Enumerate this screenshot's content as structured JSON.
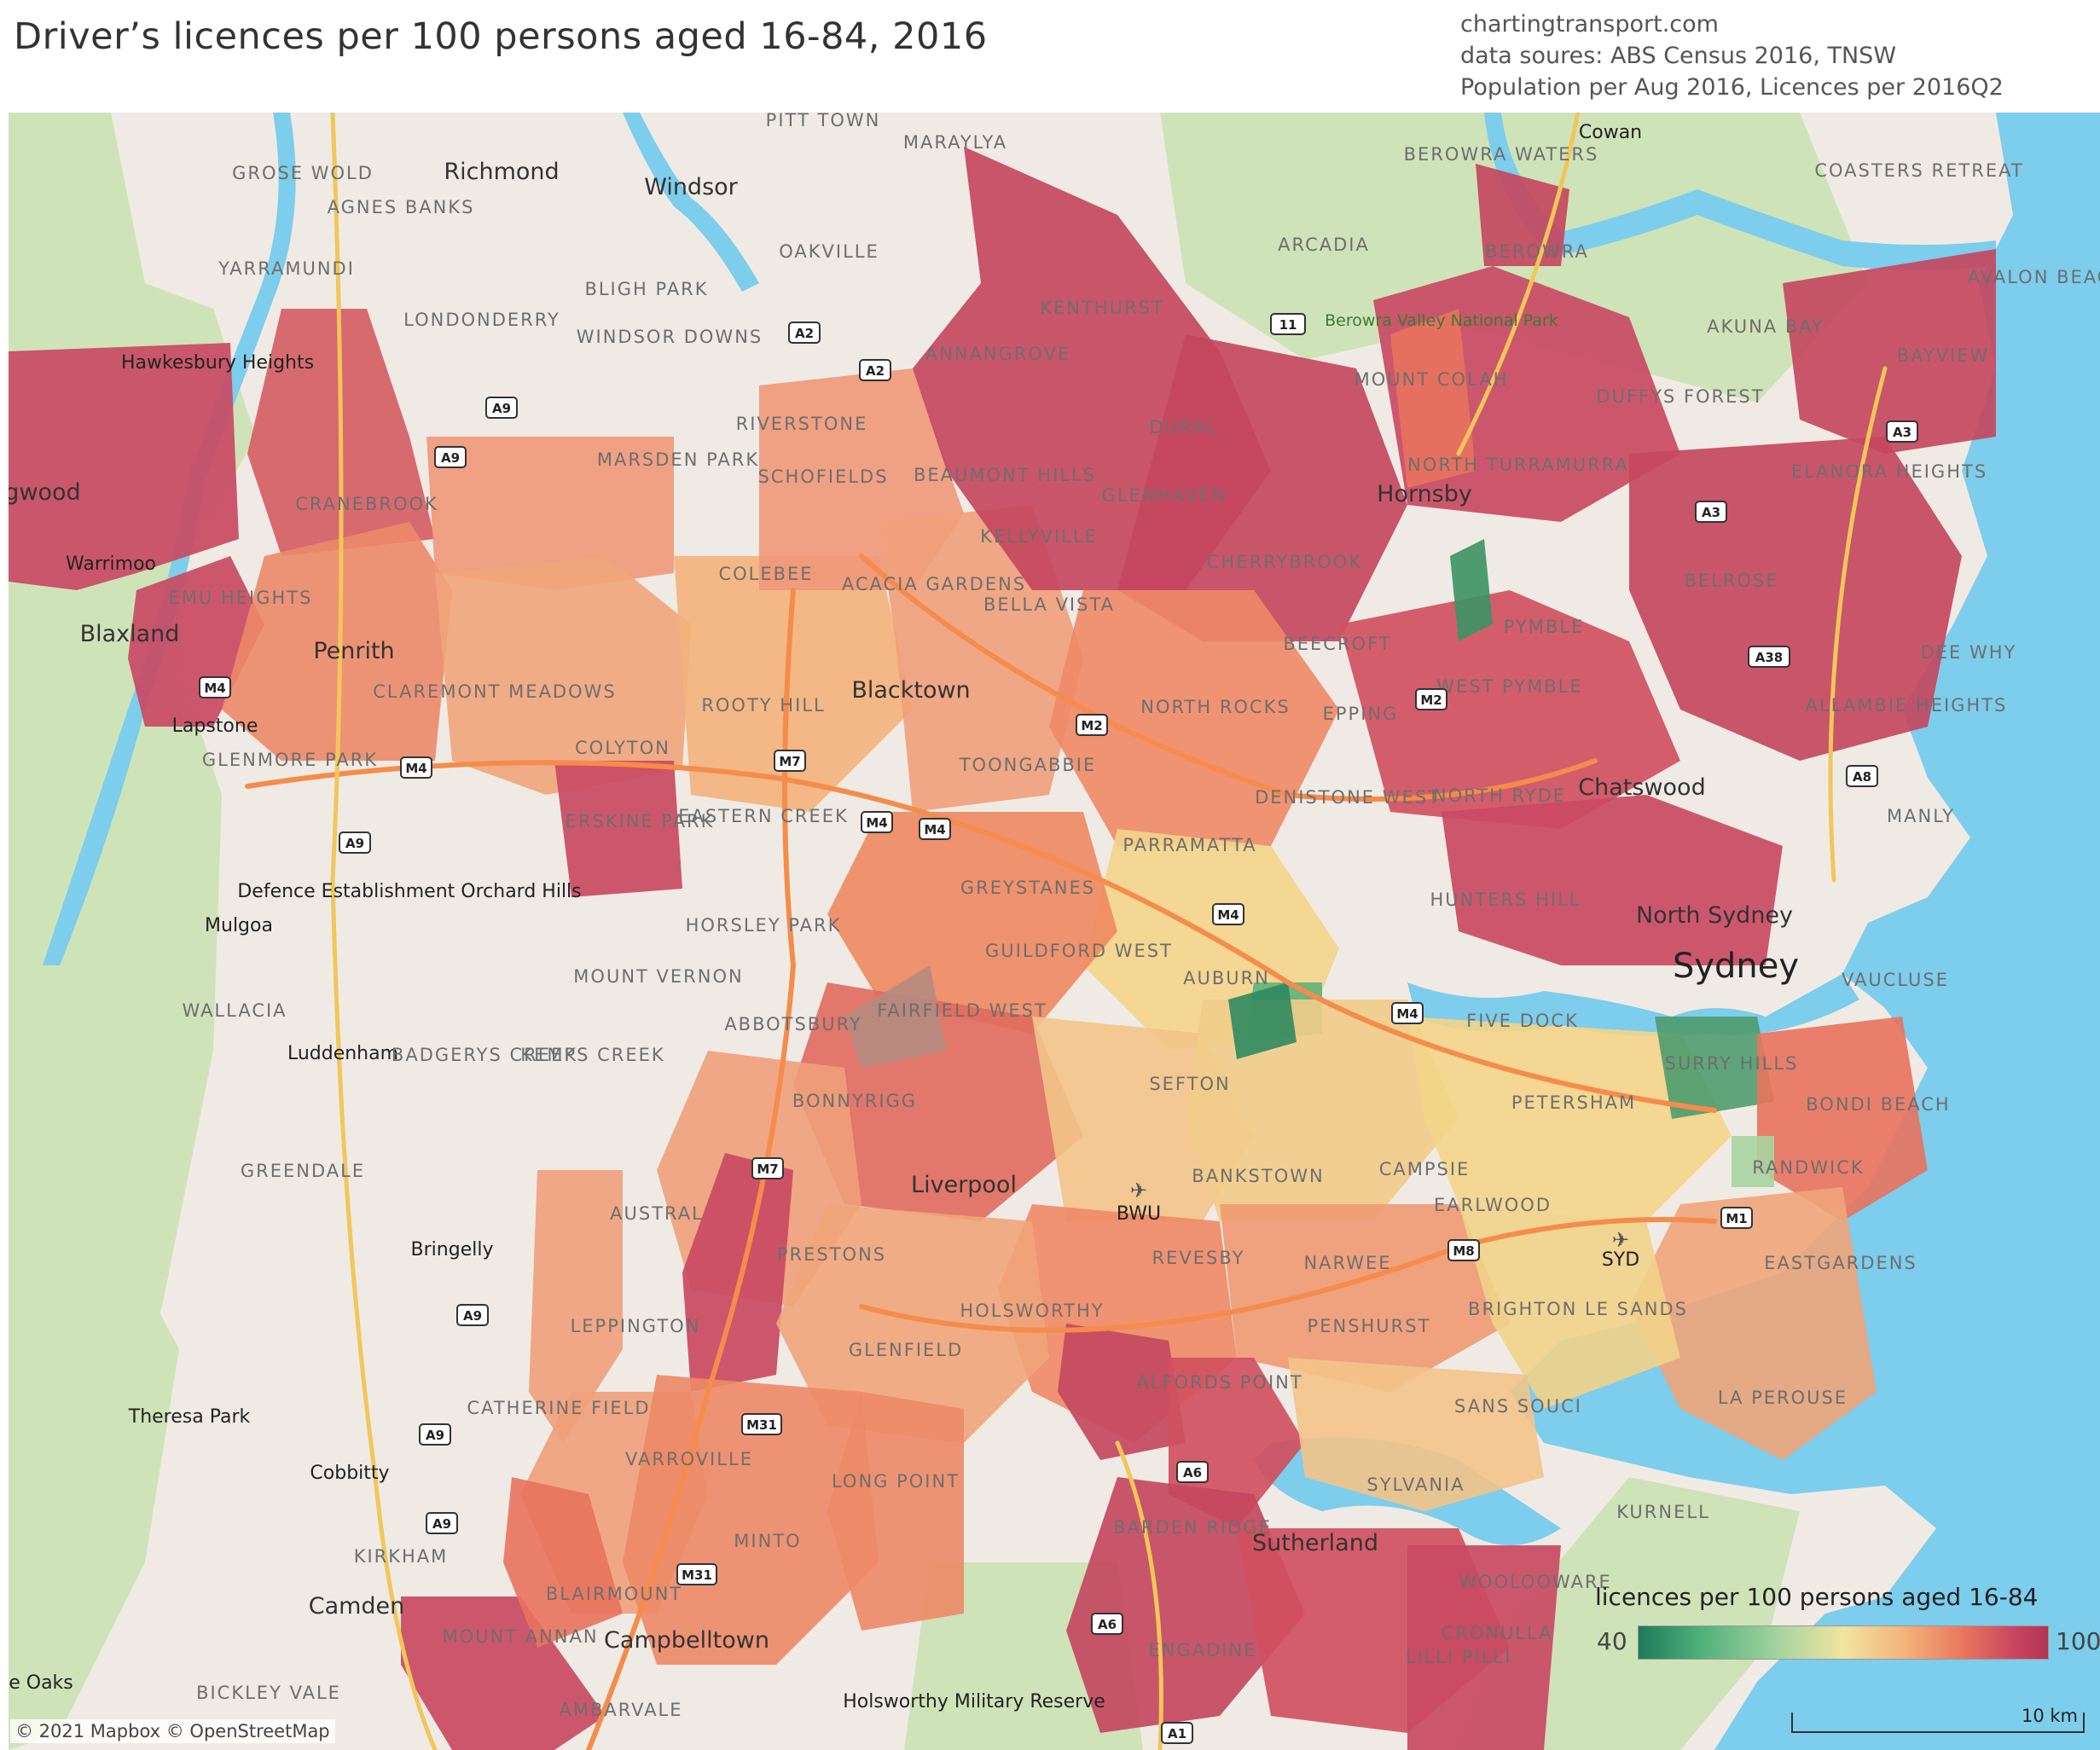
{
  "title": "Driver’s licences per 100 persons aged 16-84, 2016",
  "credits": [
    "chartingtransport.com",
    "data soures: ABS Census 2016, TNSW",
    "Population per Aug 2016, Licences per 2016Q2"
  ],
  "legend": {
    "title": "licences per 100 persons aged 16-84",
    "min": "40",
    "max": "100"
  },
  "attribution": "© 2021 Mapbox © OpenStreetMap",
  "scale_label": "10 km",
  "colors": {
    "water": "#7dcdec",
    "land": "#efebe4",
    "park": "#cfe3b8",
    "low": "#1e7a5a",
    "mid": "#f1e4a0",
    "high": "#b33454"
  },
  "labels": {
    "pitt_town": "PITT TOWN",
    "maraylya": "MARAYLYA",
    "cowan": "Cowan",
    "berowra_waters": "BEROWRA WATERS",
    "coasters_retreat": "COASTERS RETREAT",
    "grose_wold": "GROSE WOLD",
    "richmond": "Richmond",
    "windsor": "Windsor",
    "agnes_banks": "AGNES BANKS",
    "oakville": "OAKVILLE",
    "arcadia": "ARCADIA",
    "berowra": "BEROWRA",
    "avalon_beach": "AVALON BEACH",
    "yarramundi": "YARRAMUNDI",
    "bligh_park": "BLIGH PARK",
    "kenthurst": "KENTHURST",
    "berowra_valley": "Berowra Valley National Park",
    "akuna_bay": "AKUNA BAY",
    "londonderry": "LONDONDERRY",
    "windsor_downs": "WINDSOR DOWNS",
    "annangrove": "ANNANGROVE",
    "bayview": "BAYVIEW",
    "hawkesbury_heights": "Hawkesbury Heights",
    "mount_colah": "MOUNT COLAH",
    "duffys_forest": "DUFFYS FOREST",
    "riverstone": "RIVERSTONE",
    "dural": "DURAL",
    "marsden_park": "MARSDEN PARK",
    "north_turramurra": "NORTH TURRAMURRA",
    "elanora_heights": "ELANORA HEIGHTS",
    "springwood": "gwood",
    "schofields": "SCHOFIELDS",
    "beaumont_hills": "BEAUMONT HILLS",
    "glenhaven": "GLENHAVEN",
    "hornsby": "Hornsby",
    "cranebrook": "CRANEBROOK",
    "kellyville": "KELLYVILLE",
    "warrimoo": "Warrimoo",
    "cherrybrook": "CHERRYBROOK",
    "colebee": "COLEBEE",
    "acacia_gardens": "ACACIA GARDENS",
    "belrose": "BELROSE",
    "emu_heights": "EMU HEIGHTS",
    "bella_vista": "BELLA VISTA",
    "pymble": "PYMBLE",
    "blaxland": "Blaxland",
    "penrith": "Penrith",
    "beecroft": "BEECROFT",
    "dee_why": "DEE WHY",
    "blacktown": "Blacktown",
    "west_pymble": "WEST PYMBLE",
    "claremont_meadows": "CLAREMONT MEADOWS",
    "rooty_hill": "ROOTY HILL",
    "north_rocks": "NORTH ROCKS",
    "epping": "EPPING",
    "allambie_heights": "ALLAMBIE HEIGHTS",
    "lapstone": "Lapstone",
    "colyton": "COLYTON",
    "glenmore_park": "GLENMORE PARK",
    "toongabbie": "TOONGABBIE",
    "north_ryde": "NORTH RYDE",
    "chatswood": "Chatswood",
    "denistone_west": "DENISTONE WEST",
    "erskine_park": "ERSKINE PARK",
    "eastern_creek": "EASTERN CREEK",
    "manly": "MANLY",
    "parramatta": "PARRAMATTA",
    "defence": "Defence Establishment Orchard Hills",
    "greystanes": "GREYSTANES",
    "hunters_hill": "HUNTERS HILL",
    "north_sydney": "North Sydney",
    "mulgoa": "Mulgoa",
    "horsley_park": "HORSLEY PARK",
    "guildford_west": "GUILDFORD WEST",
    "auburn": "AUBURN",
    "sydney": "Sydney",
    "vaucluse": "VAUCLUSE",
    "wallacia": "WALLACIA",
    "mount_vernon": "MOUNT VERNON",
    "fairfield_west": "FAIRFIELD WEST",
    "five_dock": "FIVE DOCK",
    "surry_hills": "SURRY HILLS",
    "abbotsbury": "ABBOTSBURY",
    "luddenham": "Luddenham",
    "badgerys_creek": "BADGERYS CREEK",
    "kemps_creek": "KEMPS CREEK",
    "sefton": "SEFTON",
    "petersham": "PETERSHAM",
    "bondi_beach": "BONDI BEACH",
    "bonnyrigg": "BONNYRIGG",
    "greendale": "GREENDALE",
    "campsie": "CAMPSIE",
    "randwick": "RANDWICK",
    "liverpool": "Liverpool",
    "bankstown": "BANKSTOWN",
    "earlwood": "EARLWOOD",
    "austral": "AUSTRAL",
    "bwu": "BWU",
    "bringelly": "Bringelly",
    "prestons": "PRESTONS",
    "revesby": "REVESBY",
    "narwee": "NARWEE",
    "syd": "SYD",
    "eastgardens": "EASTGARDENS",
    "holsworthy": "HOLSWORTHY",
    "brighton_le_sands": "BRIGHTON LE SANDS",
    "leppington": "LEPPINGTON",
    "penshurst": "PENSHURST",
    "glenfield": "GLENFIELD",
    "theresa_park": "Theresa Park",
    "catherine_field": "CATHERINE FIELD",
    "alfords_point": "ALFORDS POINT",
    "la_perouse": "LA PEROUSE",
    "sans_souci": "SANS SOUCI",
    "varroville": "VARROVILLE",
    "cobbitty": "Cobbitty",
    "long_point": "LONG POINT",
    "sylvania": "SYLVANIA",
    "kurnell": "KURNELL",
    "barden_ridge": "BARDEN RIDGE",
    "minto": "MINTO",
    "kirkham": "KIRKHAM",
    "sutherland": "Sutherland",
    "camden": "Camden",
    "blairmount": "BLAIRMOUNT",
    "woolooware": "WOOLOOWARE",
    "mount_annan": "MOUNT ANNAN",
    "campbelltown": "Campbelltown",
    "cronulla": "CRONULLA",
    "engadine": "ENGADINE",
    "lilli_pilli": "LILLI PILLI",
    "oaks": "e Oaks",
    "bickley_vale": "BICKLEY VALE",
    "holsworthy_mr": "Holsworthy Military Reserve",
    "ambarvale": "AMBARVALE"
  },
  "shields": {
    "a2a": "A2",
    "a2b": "A2",
    "a9a": "A9",
    "a9b": "A9",
    "a9c": "A9",
    "a9d": "A9",
    "a9e": "A9",
    "a9f": "A9",
    "m2a": "M2",
    "m2b": "M2",
    "m4a": "M4",
    "m4b": "M4",
    "m4c": "M4",
    "m4d": "M4",
    "m4e": "M4",
    "m4f": "M4",
    "m7a": "M7",
    "m7b": "M7",
    "m31a": "M31",
    "m31b": "M31",
    "a3a": "A3",
    "a3b": "A3",
    "a38": "A38",
    "a8": "A8",
    "r11": "11",
    "m1": "M1",
    "m8": "M8",
    "a6a": "A6",
    "a6b": "A6",
    "a1": "A1"
  }
}
